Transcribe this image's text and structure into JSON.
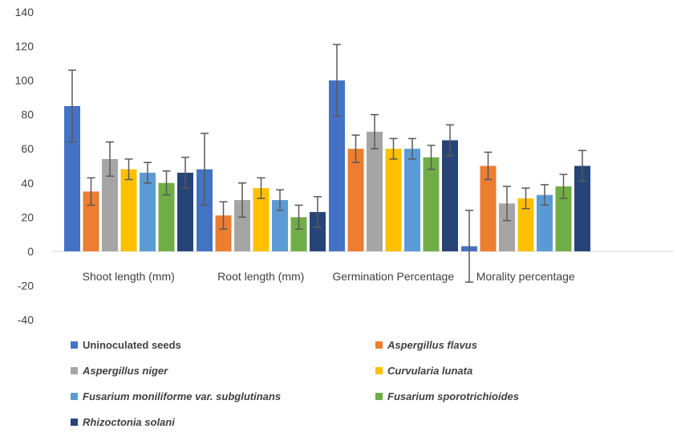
{
  "chart_data": {
    "type": "bar",
    "categories": [
      "Shoot length (mm)",
      "Root length (mm)",
      "Germination Percentage",
      "Morality percentage"
    ],
    "ylim": [
      -40,
      140
    ],
    "yticks": [
      -40,
      -20,
      0,
      20,
      40,
      60,
      80,
      100,
      120,
      140
    ],
    "grid": false,
    "legend_position": "bottom",
    "series": [
      {
        "name": "Uninoculated seeds",
        "italic": false,
        "color": "#4472C4",
        "values": [
          85,
          48,
          100,
          3
        ],
        "errors": [
          21,
          21,
          21,
          21
        ]
      },
      {
        "name": "Aspergillus flavus",
        "italic": true,
        "color": "#ED7D31",
        "values": [
          35,
          21,
          60,
          50
        ],
        "errors": [
          8,
          8,
          8,
          8
        ]
      },
      {
        "name": "Aspergillus niger",
        "italic": true,
        "color": "#A5A5A5",
        "values": [
          54,
          30,
          70,
          28
        ],
        "errors": [
          10,
          10,
          10,
          10
        ]
      },
      {
        "name": "Curvularia lunata",
        "italic": true,
        "color": "#FFC000",
        "values": [
          48,
          37,
          60,
          31
        ],
        "errors": [
          6,
          6,
          6,
          6
        ]
      },
      {
        "name": "Fusarium moniliforme var. subglutinans",
        "italic": true,
        "color": "#5B9BD5",
        "values": [
          46,
          30,
          60,
          33
        ],
        "errors": [
          6,
          6,
          6,
          6
        ]
      },
      {
        "name": "Fusarium sporotrichioides",
        "italic": true,
        "color": "#70AD47",
        "values": [
          40,
          20,
          55,
          38
        ],
        "errors": [
          7,
          7,
          7,
          7
        ]
      },
      {
        "name": "Rhizoctonia solani",
        "italic": true,
        "color": "#264478",
        "values": [
          46,
          23,
          65,
          50
        ],
        "errors": [
          9,
          9,
          9,
          9
        ]
      }
    ]
  }
}
